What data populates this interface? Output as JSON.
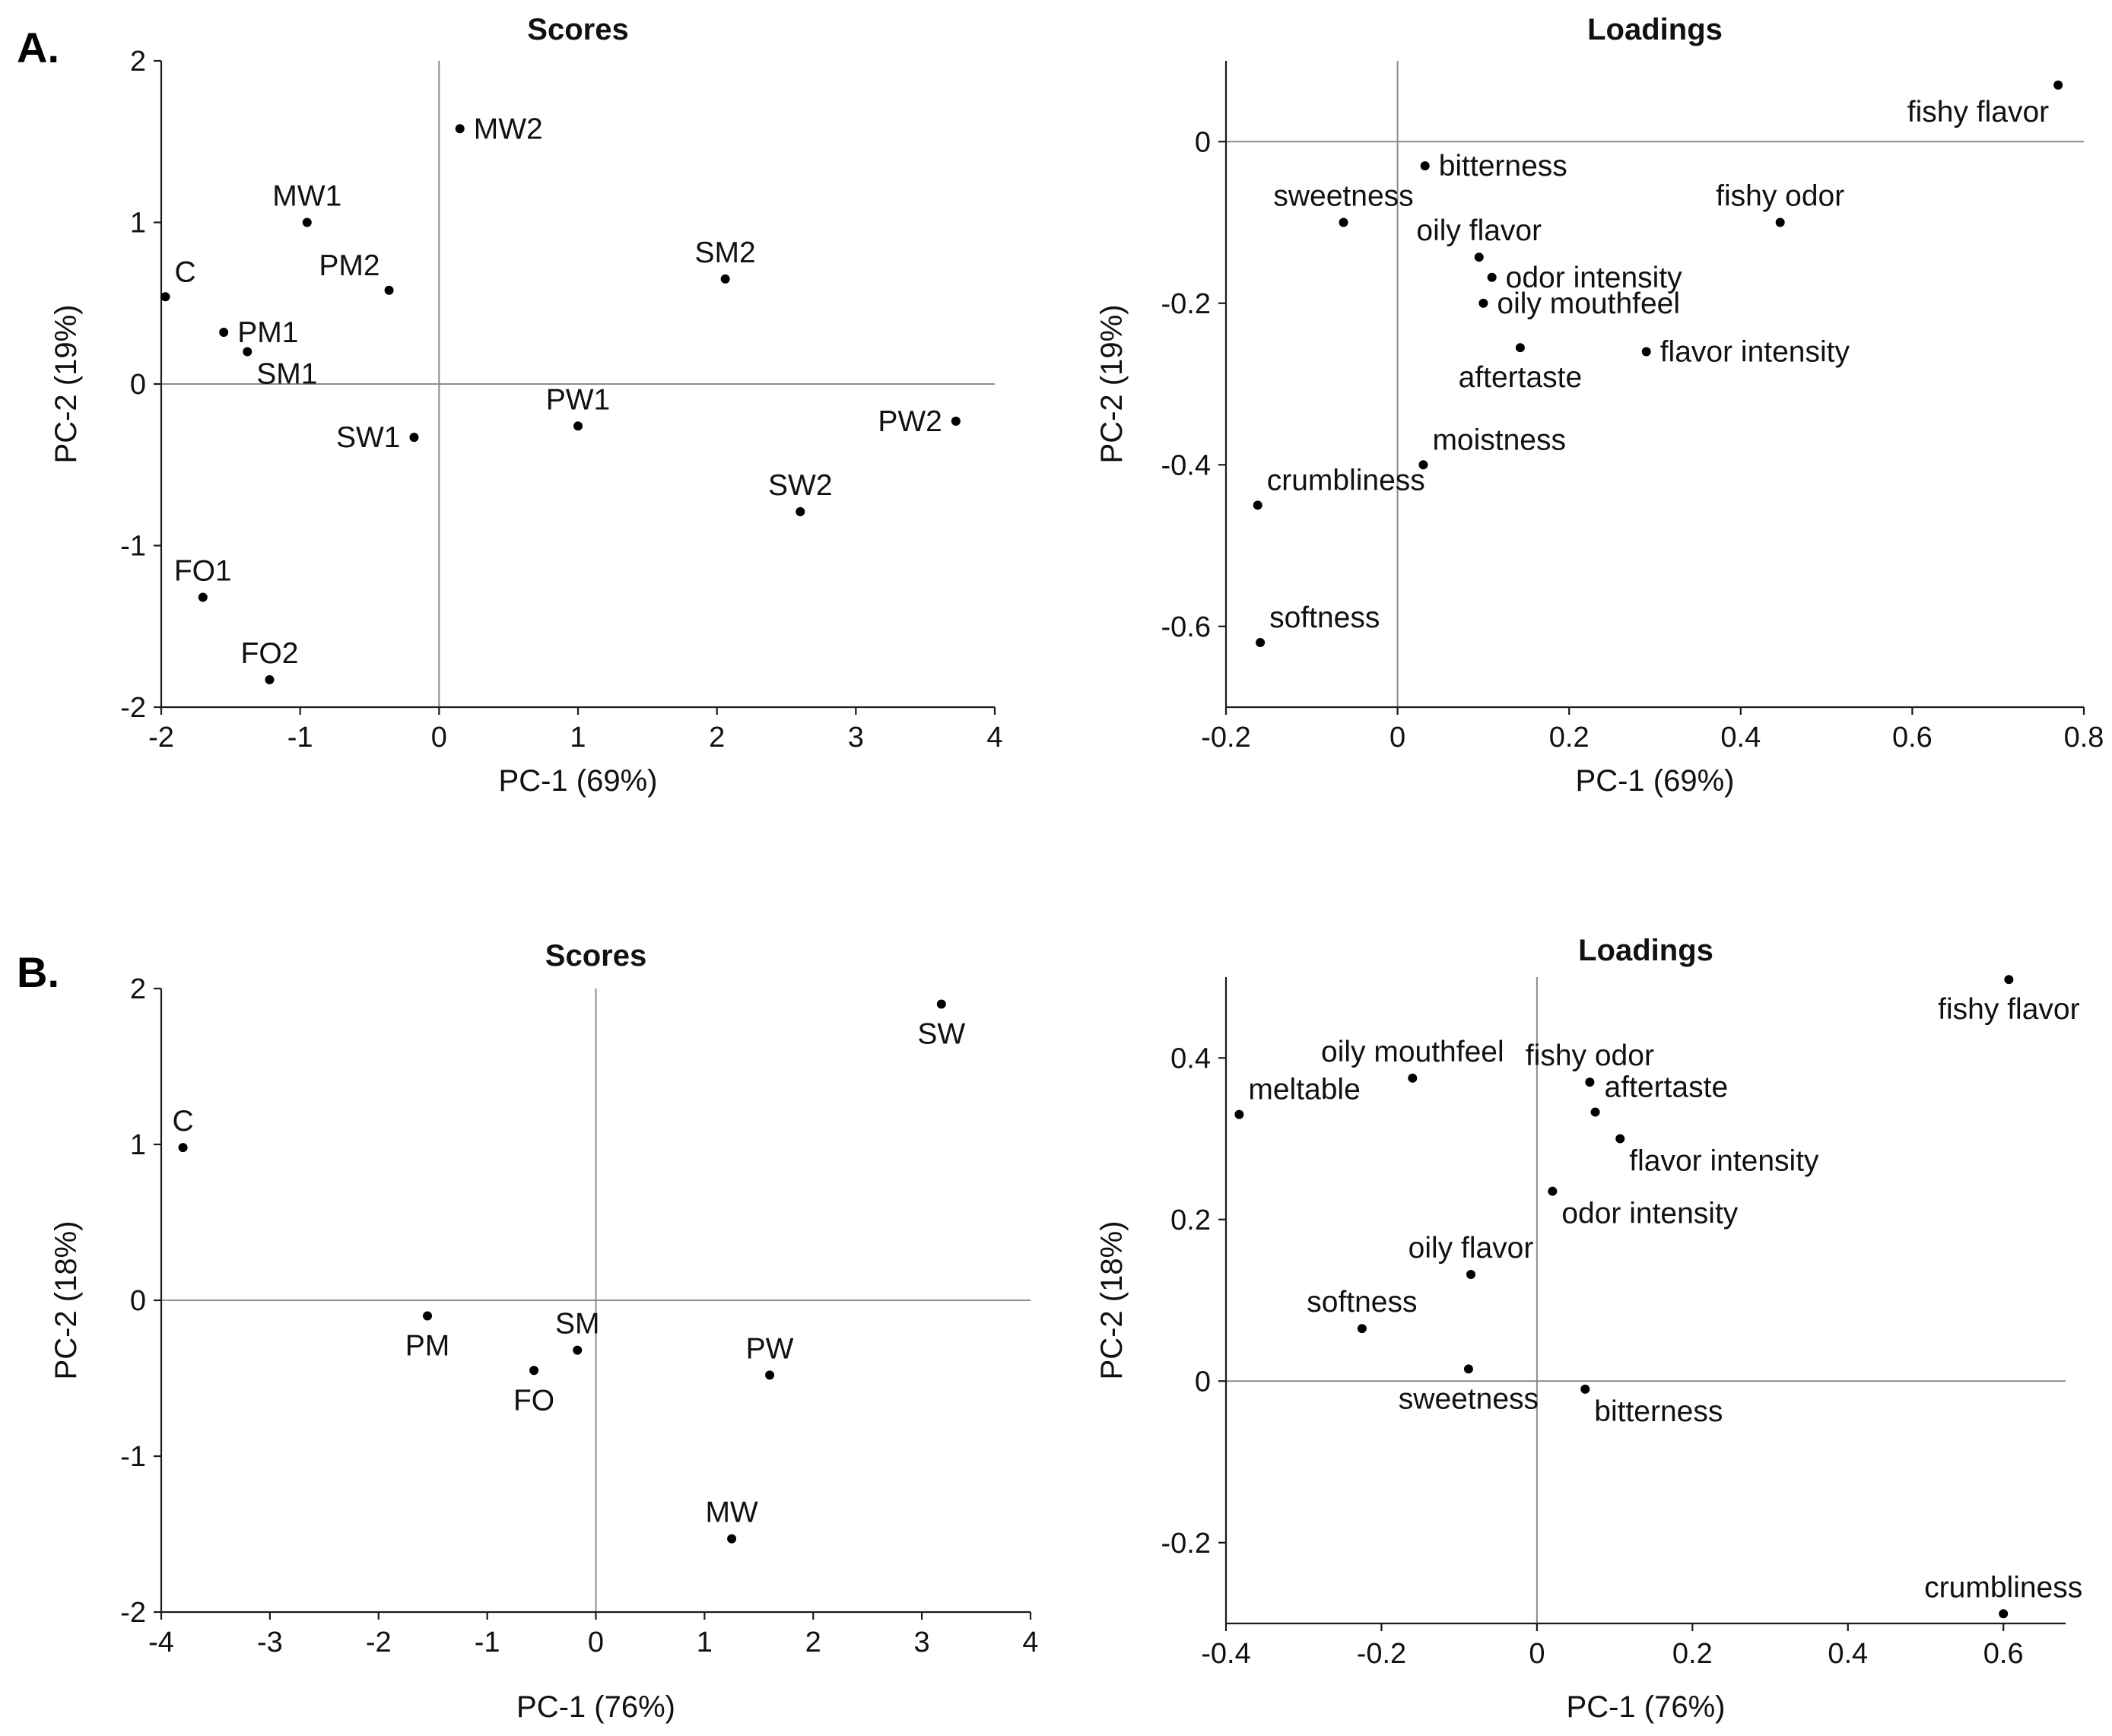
{
  "panel_labels": [
    "A.",
    "B."
  ],
  "chart_data": [
    {
      "id": "A-scores",
      "panel": "A.",
      "type": "scatter",
      "title": "Scores",
      "xlabel": "PC-1 (69%)",
      "ylabel": "PC-2 (19%)",
      "xlim": [
        -2,
        4
      ],
      "ylim": [
        -2,
        2
      ],
      "xticks": [
        -2,
        -1,
        0,
        1,
        2,
        3,
        4
      ],
      "yticks": [
        -2,
        -1,
        0,
        1,
        2
      ],
      "tick_decimals": 0,
      "points": [
        {
          "label": "MW2",
          "x": 0.15,
          "y": 1.58,
          "pos": "r"
        },
        {
          "label": "MW1",
          "x": -0.95,
          "y": 1.0,
          "pos": "t"
        },
        {
          "label": "C",
          "x": -1.97,
          "y": 0.54,
          "pos": "tr"
        },
        {
          "label": "PM2",
          "x": -0.36,
          "y": 0.58,
          "pos": "tl"
        },
        {
          "label": "PM1",
          "x": -1.55,
          "y": 0.32,
          "pos": "r"
        },
        {
          "label": "SM1",
          "x": -1.38,
          "y": 0.2,
          "pos": "br"
        },
        {
          "label": "SM2",
          "x": 2.06,
          "y": 0.65,
          "pos": "t"
        },
        {
          "label": "PW1",
          "x": 1.0,
          "y": -0.26,
          "pos": "t"
        },
        {
          "label": "SW1",
          "x": -0.18,
          "y": -0.33,
          "pos": "l"
        },
        {
          "label": "PW2",
          "x": 3.72,
          "y": -0.23,
          "pos": "l"
        },
        {
          "label": "SW2",
          "x": 2.6,
          "y": -0.79,
          "pos": "t"
        },
        {
          "label": "FO1",
          "x": -1.7,
          "y": -1.32,
          "pos": "t"
        },
        {
          "label": "FO2",
          "x": -1.22,
          "y": -1.83,
          "pos": "t"
        }
      ]
    },
    {
      "id": "A-loadings",
      "panel": "A.",
      "type": "scatter",
      "title": "Loadings",
      "xlabel": "PC-1 (69%)",
      "ylabel": "PC-2 (19%)",
      "xlim": [
        -0.2,
        0.8
      ],
      "ylim": [
        -0.7,
        0.1
      ],
      "xticks": [
        -0.2,
        0,
        0.2,
        0.4,
        0.6,
        0.8
      ],
      "yticks": [
        -0.6,
        -0.4,
        -0.2,
        0
      ],
      "tick_decimals": 1,
      "points": [
        {
          "label": "fishy flavor",
          "x": 0.77,
          "y": 0.07,
          "pos": "bl"
        },
        {
          "label": "bitterness",
          "x": 0.032,
          "y": -0.03,
          "pos": "r"
        },
        {
          "label": "sweetness",
          "x": -0.063,
          "y": -0.1,
          "pos": "t"
        },
        {
          "label": "fishy odor",
          "x": 0.446,
          "y": -0.1,
          "pos": "t"
        },
        {
          "label": "oily flavor",
          "x": 0.095,
          "y": -0.143,
          "pos": "t"
        },
        {
          "label": "odor intensity",
          "x": 0.11,
          "y": -0.168,
          "pos": "r"
        },
        {
          "label": "oily mouthfeel",
          "x": 0.1,
          "y": -0.2,
          "pos": "r"
        },
        {
          "label": "aftertaste",
          "x": 0.143,
          "y": -0.255,
          "pos": "b"
        },
        {
          "label": "flavor intensity",
          "x": 0.29,
          "y": -0.26,
          "pos": "r"
        },
        {
          "label": "moistness",
          "x": 0.03,
          "y": -0.4,
          "pos": "tr"
        },
        {
          "label": "crumbliness",
          "x": -0.163,
          "y": -0.45,
          "pos": "tr"
        },
        {
          "label": "softness",
          "x": -0.16,
          "y": -0.62,
          "pos": "tr"
        }
      ]
    },
    {
      "id": "B-scores",
      "panel": "B.",
      "type": "scatter",
      "title": "Scores",
      "xlabel": "PC-1 (76%)",
      "ylabel": "PC-2 (18%)",
      "xlim": [
        -4,
        4
      ],
      "ylim": [
        -2,
        2
      ],
      "xticks": [
        -4,
        -3,
        -2,
        -1,
        0,
        1,
        2,
        3,
        4
      ],
      "yticks": [
        -2,
        -1,
        0,
        1,
        2
      ],
      "tick_decimals": 0,
      "points": [
        {
          "label": "SW",
          "x": 3.18,
          "y": 1.9,
          "pos": "b"
        },
        {
          "label": "C",
          "x": -3.8,
          "y": 0.98,
          "pos": "t"
        },
        {
          "label": "PM",
          "x": -1.55,
          "y": -0.1,
          "pos": "b"
        },
        {
          "label": "SM",
          "x": -0.17,
          "y": -0.32,
          "pos": "t"
        },
        {
          "label": "FO",
          "x": -0.57,
          "y": -0.45,
          "pos": "b"
        },
        {
          "label": "PW",
          "x": 1.6,
          "y": -0.48,
          "pos": "t"
        },
        {
          "label": "MW",
          "x": 1.25,
          "y": -1.53,
          "pos": "t"
        }
      ]
    },
    {
      "id": "B-loadings",
      "panel": "B.",
      "type": "scatter",
      "title": "Loadings",
      "xlabel": "PC-1 (76%)",
      "ylabel": "PC-2 (18%)",
      "xlim": [
        -0.4,
        0.68
      ],
      "ylim": [
        -0.3,
        0.5
      ],
      "xticks": [
        -0.4,
        -0.2,
        0,
        0.2,
        0.4,
        0.6
      ],
      "yticks": [
        -0.2,
        0,
        0.2,
        0.4
      ],
      "tick_decimals": 1,
      "points": [
        {
          "label": "fishy flavor",
          "x": 0.607,
          "y": 0.497,
          "pos": "b"
        },
        {
          "label": "oily mouthfeel",
          "x": -0.16,
          "y": 0.375,
          "pos": "t"
        },
        {
          "label": "fishy odor",
          "x": 0.068,
          "y": 0.37,
          "pos": "t"
        },
        {
          "label": "meltable",
          "x": -0.383,
          "y": 0.33,
          "pos": "tr"
        },
        {
          "label": "aftertaste",
          "x": 0.075,
          "y": 0.333,
          "pos": "tr"
        },
        {
          "label": "flavor intensity",
          "x": 0.107,
          "y": 0.3,
          "pos": "br"
        },
        {
          "label": "odor intensity",
          "x": 0.02,
          "y": 0.235,
          "pos": "br"
        },
        {
          "label": "oily flavor",
          "x": -0.085,
          "y": 0.132,
          "pos": "t"
        },
        {
          "label": "softness",
          "x": -0.225,
          "y": 0.065,
          "pos": "t"
        },
        {
          "label": "sweetness",
          "x": -0.088,
          "y": 0.015,
          "pos": "b"
        },
        {
          "label": "bitterness",
          "x": 0.062,
          "y": -0.01,
          "pos": "br"
        },
        {
          "label": "crumbliness",
          "x": 0.6,
          "y": -0.288,
          "pos": "t"
        }
      ]
    }
  ]
}
